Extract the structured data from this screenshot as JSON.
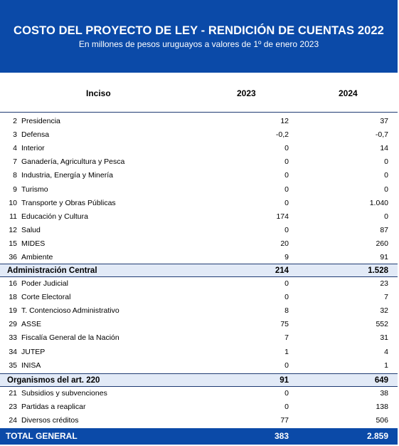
{
  "header": {
    "title": "COSTO DEL PROYECTO DE LEY - RENDICIÓN DE CUENTAS 2022",
    "subtitle": "En millones de pesos uruguayos a valores de 1º de enero 2023"
  },
  "columns": {
    "inciso": "Inciso",
    "y2023": "2023",
    "y2024": "2024"
  },
  "group1": [
    {
      "code": "2",
      "name": "Presidencia",
      "v2023": "12",
      "v2024": "37"
    },
    {
      "code": "3",
      "name": "Defensa",
      "v2023": "-0,2",
      "v2024": "-0,7"
    },
    {
      "code": "4",
      "name": "Interior",
      "v2023": "0",
      "v2024": "14"
    },
    {
      "code": "7",
      "name": "Ganadería, Agricultura y Pesca",
      "v2023": "0",
      "v2024": "0"
    },
    {
      "code": "8",
      "name": "Industria, Energía y Minería",
      "v2023": "0",
      "v2024": "0"
    },
    {
      "code": "9",
      "name": "Turismo",
      "v2023": "0",
      "v2024": "0"
    },
    {
      "code": "10",
      "name": "Transporte y Obras Públicas",
      "v2023": "0",
      "v2024": "1.040"
    },
    {
      "code": "11",
      "name": "Educación y Cultura",
      "v2023": "174",
      "v2024": "0"
    },
    {
      "code": "12",
      "name": "Salud",
      "v2023": "0",
      "v2024": "87"
    },
    {
      "code": "15",
      "name": "MIDES",
      "v2023": "20",
      "v2024": "260"
    },
    {
      "code": "36",
      "name": "Ambiente",
      "v2023": "9",
      "v2024": "91"
    }
  ],
  "subtotal1": {
    "name": "Administración Central",
    "v2023": "214",
    "v2024": "1.528"
  },
  "group2": [
    {
      "code": "16",
      "name": "Poder Judicial",
      "v2023": "0",
      "v2024": "23"
    },
    {
      "code": "18",
      "name": "Corte Electoral",
      "v2023": "0",
      "v2024": "7"
    },
    {
      "code": "19",
      "name": "T. Contencioso Administrativo",
      "v2023": "8",
      "v2024": "32"
    },
    {
      "code": "29",
      "name": "ASSE",
      "v2023": "75",
      "v2024": "552"
    },
    {
      "code": "33",
      "name": "Fiscalía General de la Nación",
      "v2023": "7",
      "v2024": "31"
    },
    {
      "code": "34",
      "name": "JUTEP",
      "v2023": "1",
      "v2024": "4"
    },
    {
      "code": "35",
      "name": "INISA",
      "v2023": "0",
      "v2024": "1"
    }
  ],
  "subtotal2": {
    "name": "Organismos del art. 220",
    "v2023": "91",
    "v2024": "649"
  },
  "group3": [
    {
      "code": "21",
      "name": "Subsidios y subvenciones",
      "v2023": "0",
      "v2024": "38"
    },
    {
      "code": "23",
      "name": "Partidas a reaplicar",
      "v2023": "0",
      "v2024": "138"
    },
    {
      "code": "24",
      "name": "Diversos créditos",
      "v2023": "77",
      "v2024": "506"
    }
  ],
  "total": {
    "name": "TOTAL GENERAL",
    "v2023": "383",
    "v2024": "2.859"
  }
}
